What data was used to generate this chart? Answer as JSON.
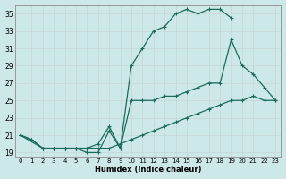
{
  "xlabel": "Humidex (Indice chaleur)",
  "background_color": "#cce8e8",
  "line_color": "#1a6b5a",
  "grid_color": "#b0d4d4",
  "xlim": [
    -0.5,
    23.5
  ],
  "ylim": [
    18.5,
    36.0
  ],
  "yticks": [
    19,
    21,
    23,
    25,
    27,
    29,
    31,
    33,
    35
  ],
  "xticks": [
    0,
    1,
    2,
    3,
    4,
    5,
    6,
    7,
    8,
    9,
    10,
    11,
    12,
    13,
    14,
    15,
    16,
    17,
    18,
    19,
    20,
    21,
    22,
    23
  ],
  "line1_x": [
    0,
    1,
    2,
    3,
    4,
    5,
    6,
    7,
    8,
    9,
    10,
    11,
    12,
    13,
    14,
    15,
    16,
    17,
    18,
    19,
    20,
    21,
    22,
    23
  ],
  "line1_y": [
    21,
    20.5,
    19.5,
    19.5,
    19.5,
    19.5,
    19.5,
    19.5,
    19.5,
    20,
    20.5,
    21,
    21.5,
    22,
    22.5,
    23,
    23.5,
    24,
    24.5,
    25,
    25,
    25.5,
    25,
    25
  ],
  "line2_x": [
    0,
    1,
    2,
    3,
    4,
    5,
    6,
    7,
    8,
    9,
    10,
    11,
    12,
    13,
    14,
    15,
    16,
    17,
    18,
    19,
    20,
    21,
    22,
    23
  ],
  "line2_y": [
    21,
    20.5,
    19.5,
    19.5,
    19.5,
    19.5,
    19.5,
    20,
    22,
    19.5,
    29,
    31,
    33,
    33.5,
    35,
    35.5,
    35,
    35.5,
    35.5,
    34.5,
    null,
    null,
    null,
    null
  ],
  "line3_x": [
    0,
    2,
    3,
    4,
    5,
    6,
    7,
    8,
    9,
    10,
    11,
    12,
    13,
    14,
    15,
    16,
    17,
    18,
    19,
    20,
    21,
    22,
    23
  ],
  "line3_y": [
    21,
    19.5,
    19.5,
    19.5,
    19.5,
    19,
    19,
    21.5,
    19.5,
    25,
    25,
    25,
    25.5,
    25.5,
    26,
    26.5,
    27,
    27,
    32,
    29,
    28,
    26.5,
    25
  ]
}
